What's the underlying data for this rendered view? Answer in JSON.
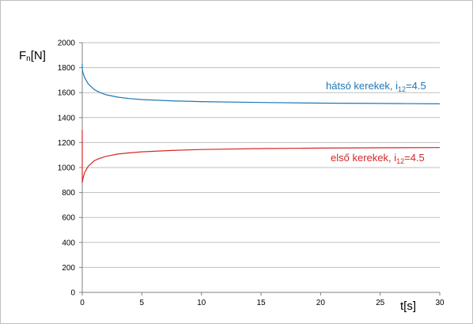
{
  "chart_data": {
    "type": "line",
    "title": "",
    "xlabel": "t[s]",
    "ylabel": {
      "main": "F",
      "sub": "n",
      "unit": "[N]"
    },
    "xlim": [
      0,
      30
    ],
    "ylim": [
      0,
      2000
    ],
    "xticks": [
      0,
      5,
      10,
      15,
      20,
      25,
      30
    ],
    "yticks": [
      0,
      200,
      400,
      600,
      800,
      1000,
      1200,
      1400,
      1600,
      1800,
      2000
    ],
    "grid": {
      "horizontal": true,
      "vertical": false
    },
    "legend": "inline labels",
    "series": [
      {
        "name": "hátsó kerekek, i12=4.5",
        "label": {
          "prefix": "hátsó kerekek, i",
          "sub": "12",
          "suffix": "=4.5"
        },
        "color": "#1f77b4",
        "x": [
          0,
          0.05,
          0.2,
          0.5,
          1,
          1.5,
          2,
          3,
          4,
          5,
          7.5,
          10,
          15,
          20,
          25,
          30
        ],
        "y": [
          1790,
          1760,
          1720,
          1670,
          1625,
          1600,
          1583,
          1563,
          1552,
          1544,
          1534,
          1528,
          1521,
          1516,
          1513,
          1510
        ]
      },
      {
        "name": "első kerekek, i12=4.5",
        "label": {
          "prefix": "első kerekek, i",
          "sub": "12",
          "suffix": "=4.5"
        },
        "color": "#d62728",
        "x": [
          0,
          0.05,
          0.2,
          0.5,
          1,
          1.5,
          2,
          3,
          4,
          5,
          7.5,
          10,
          15,
          20,
          25,
          30
        ],
        "y": [
          880,
          910,
          960,
          1010,
          1055,
          1075,
          1090,
          1108,
          1118,
          1126,
          1137,
          1144,
          1152,
          1156,
          1158,
          1160
        ]
      }
    ]
  }
}
